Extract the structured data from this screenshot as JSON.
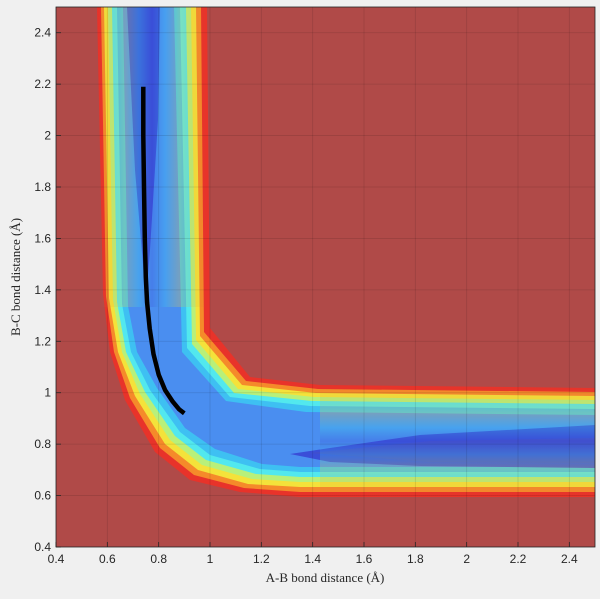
{
  "chart_data": {
    "type": "contour",
    "title": "",
    "xlabel": "A-B bond distance (Å)",
    "ylabel": "B-C bond distance (Å)",
    "xlim": [
      0.4,
      2.5
    ],
    "ylim": [
      0.4,
      2.5
    ],
    "xticks": [
      0.4,
      0.6,
      0.8,
      1,
      1.2,
      1.4,
      1.6,
      1.8,
      2,
      2.2,
      2.4
    ],
    "yticks": [
      0.4,
      0.6,
      0.8,
      1,
      1.2,
      1.4,
      1.6,
      1.8,
      2,
      2.2,
      2.4
    ],
    "xtick_labels": [
      "0.4",
      "0.6",
      "0.8",
      "1",
      "1.2",
      "1.4",
      "1.6",
      "1.8",
      "2",
      "2.2",
      "2.4"
    ],
    "ytick_labels": [
      "0.4",
      "0.6",
      "0.8",
      "1",
      "1.2",
      "1.4",
      "1.6",
      "1.8",
      "2",
      "2.2",
      "2.4"
    ],
    "grid": true,
    "colormap": "jet",
    "plateau_color": "#b04a48",
    "trajectory_color": "#000000",
    "trajectory": {
      "x": [
        0.74,
        0.74,
        0.743,
        0.746,
        0.75,
        0.755,
        0.765,
        0.78,
        0.8,
        0.825,
        0.855,
        0.88,
        0.9
      ],
      "y": [
        2.19,
        2.0,
        1.8,
        1.6,
        1.45,
        1.35,
        1.25,
        1.15,
        1.07,
        1.01,
        0.965,
        0.935,
        0.92
      ]
    }
  }
}
